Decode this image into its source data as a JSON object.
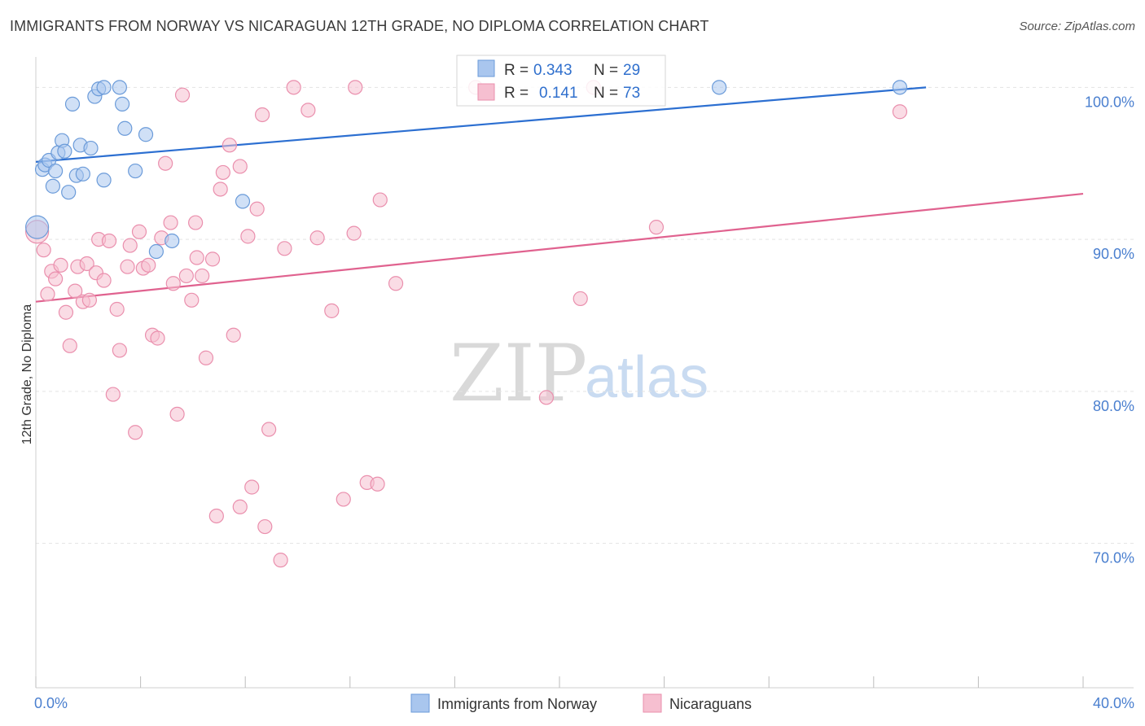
{
  "header": {
    "title": "IMMIGRANTS FROM NORWAY VS NICARAGUAN 12TH GRADE, NO DIPLOMA CORRELATION CHART",
    "source": "Source: ZipAtlas.com"
  },
  "watermark": {
    "zip": "ZIP",
    "atlas": "atlas"
  },
  "stats_box": {
    "rows": [
      {
        "r_label": "R =",
        "r_value": "0.343",
        "n_label": "N =",
        "n_value": "29"
      },
      {
        "r_label": "R =",
        "r_value": "0.141",
        "n_label": "N =",
        "n_value": "73"
      }
    ]
  },
  "legend": {
    "items": [
      {
        "label": "Immigrants from Norway"
      },
      {
        "label": "Nicaraguans"
      }
    ]
  },
  "colors": {
    "blue_fill": "#a9c6ee",
    "blue_stroke": "#6b9bd9",
    "blue_line": "#2c6fd1",
    "pink_fill": "#f6bfd0",
    "pink_stroke": "#ea8fad",
    "pink_line": "#e0628f",
    "tick_text": "#4a7fcf",
    "grid": "#e3e3e3"
  },
  "chart_data": {
    "type": "scatter",
    "title": "IMMIGRANTS FROM NORWAY VS NICARAGUAN 12TH GRADE, NO DIPLOMA CORRELATION CHART",
    "xlabel": "",
    "ylabel": "12th Grade, No Diploma",
    "xlim": [
      0,
      40
    ],
    "ylim": [
      60.5,
      102.0
    ],
    "x_tick_labels": [
      "0.0%",
      "40.0%"
    ],
    "y_ticks": [
      70,
      80,
      90,
      100
    ],
    "y_tick_labels": [
      "70.0%",
      "80.0%",
      "90.0%",
      "100.0%"
    ],
    "grid": true,
    "legend_position": "bottom-center",
    "series": [
      {
        "name": "Immigrants from Norway",
        "color": "#a9c6ee",
        "trend": {
          "x": [
            0,
            34.0
          ],
          "y": [
            95.1,
            100.0
          ]
        },
        "points": [
          {
            "x": 0.05,
            "y": 90.8,
            "big": true
          },
          {
            "x": 0.25,
            "y": 94.6
          },
          {
            "x": 0.35,
            "y": 94.9
          },
          {
            "x": 0.5,
            "y": 95.2
          },
          {
            "x": 0.65,
            "y": 93.5
          },
          {
            "x": 0.75,
            "y": 94.5
          },
          {
            "x": 0.85,
            "y": 95.7
          },
          {
            "x": 1.0,
            "y": 96.5
          },
          {
            "x": 1.1,
            "y": 95.8
          },
          {
            "x": 1.25,
            "y": 93.1
          },
          {
            "x": 1.4,
            "y": 98.9
          },
          {
            "x": 1.55,
            "y": 94.2
          },
          {
            "x": 1.7,
            "y": 96.2
          },
          {
            "x": 1.8,
            "y": 94.3
          },
          {
            "x": 2.1,
            "y": 96.0
          },
          {
            "x": 2.25,
            "y": 99.4
          },
          {
            "x": 2.4,
            "y": 99.9
          },
          {
            "x": 2.6,
            "y": 100.0
          },
          {
            "x": 2.6,
            "y": 93.9
          },
          {
            "x": 3.2,
            "y": 100.0
          },
          {
            "x": 3.3,
            "y": 98.9
          },
          {
            "x": 3.4,
            "y": 97.3
          },
          {
            "x": 3.8,
            "y": 94.5
          },
          {
            "x": 4.2,
            "y": 96.9
          },
          {
            "x": 4.6,
            "y": 89.2
          },
          {
            "x": 5.2,
            "y": 89.9
          },
          {
            "x": 7.9,
            "y": 92.5
          },
          {
            "x": 26.1,
            "y": 100.0
          },
          {
            "x": 33.0,
            "y": 100.0
          }
        ]
      },
      {
        "name": "Nicaraguans",
        "color": "#f6bfd0",
        "trend": {
          "x": [
            0,
            40.0
          ],
          "y": [
            85.9,
            93.0
          ]
        },
        "points": [
          {
            "x": 0.05,
            "y": 90.5,
            "big": true
          },
          {
            "x": 0.3,
            "y": 89.3
          },
          {
            "x": 0.45,
            "y": 86.4
          },
          {
            "x": 0.6,
            "y": 87.9
          },
          {
            "x": 0.75,
            "y": 87.4
          },
          {
            "x": 0.95,
            "y": 88.3
          },
          {
            "x": 1.15,
            "y": 85.2
          },
          {
            "x": 1.3,
            "y": 83.0
          },
          {
            "x": 1.5,
            "y": 86.6
          },
          {
            "x": 1.6,
            "y": 88.2
          },
          {
            "x": 1.8,
            "y": 85.9
          },
          {
            "x": 1.95,
            "y": 88.4
          },
          {
            "x": 2.05,
            "y": 86.0
          },
          {
            "x": 2.3,
            "y": 87.8
          },
          {
            "x": 2.4,
            "y": 90.0
          },
          {
            "x": 2.6,
            "y": 87.3
          },
          {
            "x": 2.8,
            "y": 89.9
          },
          {
            "x": 2.95,
            "y": 79.8
          },
          {
            "x": 3.1,
            "y": 85.4
          },
          {
            "x": 3.2,
            "y": 82.7
          },
          {
            "x": 3.5,
            "y": 88.2
          },
          {
            "x": 3.6,
            "y": 89.6
          },
          {
            "x": 3.8,
            "y": 77.3
          },
          {
            "x": 3.95,
            "y": 90.5
          },
          {
            "x": 4.1,
            "y": 88.1
          },
          {
            "x": 4.3,
            "y": 88.3
          },
          {
            "x": 4.45,
            "y": 83.7
          },
          {
            "x": 4.65,
            "y": 83.5
          },
          {
            "x": 4.8,
            "y": 90.1
          },
          {
            "x": 4.95,
            "y": 95.0
          },
          {
            "x": 5.15,
            "y": 91.1
          },
          {
            "x": 5.25,
            "y": 87.1
          },
          {
            "x": 5.4,
            "y": 78.5
          },
          {
            "x": 5.6,
            "y": 99.5
          },
          {
            "x": 5.75,
            "y": 87.6
          },
          {
            "x": 5.95,
            "y": 86.0
          },
          {
            "x": 6.1,
            "y": 91.1
          },
          {
            "x": 6.15,
            "y": 88.8
          },
          {
            "x": 6.35,
            "y": 87.6
          },
          {
            "x": 6.5,
            "y": 82.2
          },
          {
            "x": 6.75,
            "y": 88.7
          },
          {
            "x": 6.9,
            "y": 71.8
          },
          {
            "x": 7.05,
            "y": 93.3
          },
          {
            "x": 7.15,
            "y": 94.4
          },
          {
            "x": 7.4,
            "y": 96.2
          },
          {
            "x": 7.55,
            "y": 83.7
          },
          {
            "x": 7.8,
            "y": 94.8
          },
          {
            "x": 7.8,
            "y": 72.4
          },
          {
            "x": 8.1,
            "y": 90.2
          },
          {
            "x": 8.25,
            "y": 73.7
          },
          {
            "x": 8.45,
            "y": 92.0
          },
          {
            "x": 8.65,
            "y": 98.2
          },
          {
            "x": 8.75,
            "y": 71.1
          },
          {
            "x": 8.9,
            "y": 77.5
          },
          {
            "x": 9.35,
            "y": 68.9
          },
          {
            "x": 9.5,
            "y": 89.4
          },
          {
            "x": 9.85,
            "y": 100.0
          },
          {
            "x": 10.4,
            "y": 98.5
          },
          {
            "x": 10.75,
            "y": 90.1
          },
          {
            "x": 11.3,
            "y": 85.3
          },
          {
            "x": 11.75,
            "y": 72.9
          },
          {
            "x": 12.15,
            "y": 90.4
          },
          {
            "x": 12.2,
            "y": 100.0
          },
          {
            "x": 12.65,
            "y": 74.0
          },
          {
            "x": 13.05,
            "y": 73.9
          },
          {
            "x": 13.15,
            "y": 92.6
          },
          {
            "x": 13.75,
            "y": 87.1
          },
          {
            "x": 16.8,
            "y": 100.0
          },
          {
            "x": 19.5,
            "y": 79.6
          },
          {
            "x": 20.8,
            "y": 86.1
          },
          {
            "x": 21.3,
            "y": 100.0
          },
          {
            "x": 23.7,
            "y": 90.8
          },
          {
            "x": 33.0,
            "y": 98.4
          }
        ]
      }
    ]
  }
}
